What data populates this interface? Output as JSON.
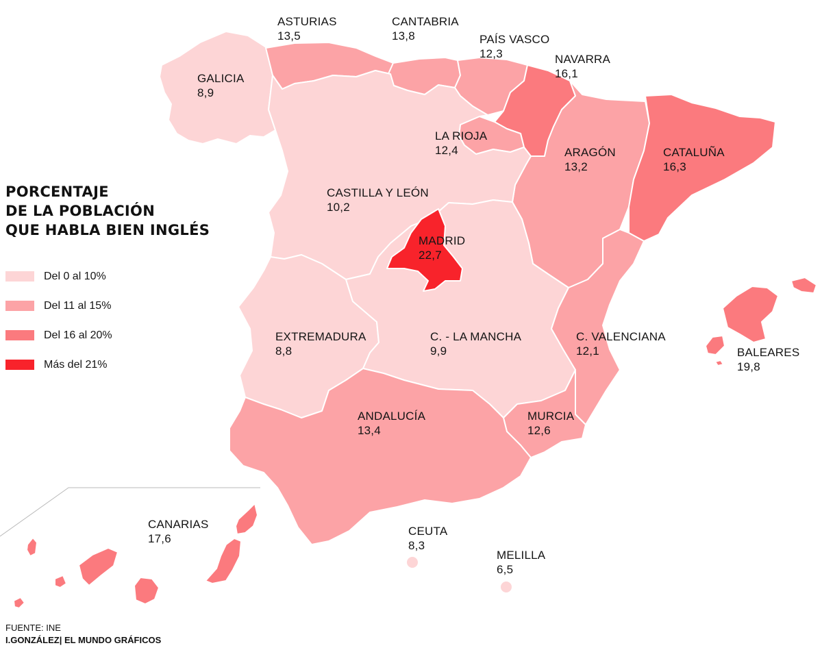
{
  "title": [
    "PORCENTAJE",
    "DE LA POBLACIÓN",
    "QUE HABLA BIEN INGLÉS"
  ],
  "legend": [
    {
      "label": "Del 0 al 10%",
      "color": "#fdd5d6"
    },
    {
      "label": "Del 11 al 15%",
      "color": "#fca3a6"
    },
    {
      "label": "Del 16 al 20%",
      "color": "#fb7a7e"
    },
    {
      "label": "Más del 21%",
      "color": "#f8232b"
    }
  ],
  "regions": [
    {
      "id": "galicia",
      "name": "GALICIA",
      "value": "8,9",
      "class": 0
    },
    {
      "id": "asturias",
      "name": "ASTURIAS",
      "value": "13,5",
      "class": 1
    },
    {
      "id": "cantabria",
      "name": "CANTABRIA",
      "value": "13,8",
      "class": 1
    },
    {
      "id": "pais-vasco",
      "name": "PAÍS VASCO",
      "value": "12,3",
      "class": 1
    },
    {
      "id": "navarra",
      "name": "NAVARRA",
      "value": "16,1",
      "class": 2
    },
    {
      "id": "la-rioja",
      "name": "LA RIOJA",
      "value": "12,4",
      "class": 1
    },
    {
      "id": "aragon",
      "name": "ARAGÓN",
      "value": "13,2",
      "class": 1
    },
    {
      "id": "cataluna",
      "name": "CATALUÑA",
      "value": "16,3",
      "class": 2
    },
    {
      "id": "castilla-y-leon",
      "name": "CASTILLA Y LEÓN",
      "value": "10,2",
      "class": 0
    },
    {
      "id": "madrid",
      "name": "MADRID",
      "value": "22,7",
      "class": 3
    },
    {
      "id": "extremadura",
      "name": "EXTREMADURA",
      "value": "8,8",
      "class": 0
    },
    {
      "id": "castilla-la-mancha",
      "name": "C. - LA MANCHA",
      "value": "9,9",
      "class": 0
    },
    {
      "id": "c-valenciana",
      "name": "C. VALENCIANA",
      "value": "12,1",
      "class": 1
    },
    {
      "id": "baleares",
      "name": "BALEARES",
      "value": "19,8",
      "class": 2
    },
    {
      "id": "murcia",
      "name": "MURCIA",
      "value": "12,6",
      "class": 1
    },
    {
      "id": "andalucia",
      "name": "ANDALUCÍA",
      "value": "13,4",
      "class": 1
    },
    {
      "id": "canarias",
      "name": "CANARIAS",
      "value": "17,6",
      "class": 2
    },
    {
      "id": "ceuta",
      "name": "CEUTA",
      "value": "8,3",
      "class": 0
    },
    {
      "id": "melilla",
      "name": "MELILLA",
      "value": "6,5",
      "class": 0
    }
  ],
  "source": {
    "line1": "FUENTE: INE",
    "line2": "I.GONZÁLEZ| EL MUNDO GRÁFICOS"
  }
}
